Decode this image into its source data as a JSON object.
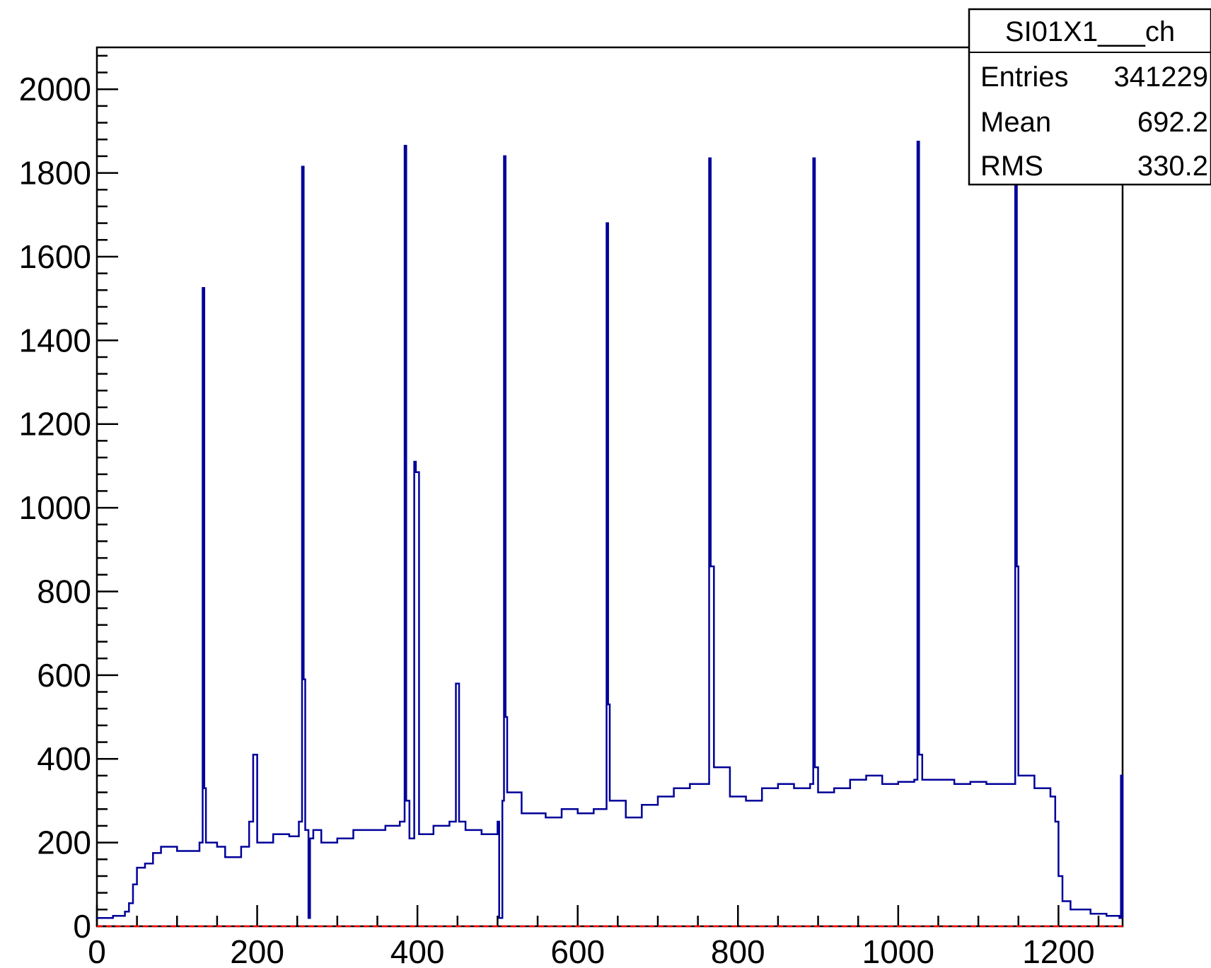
{
  "chart_data": {
    "type": "histogram",
    "title": "",
    "xlabel": "",
    "ylabel": "",
    "xlim": [
      0,
      1280
    ],
    "ylim": [
      0,
      2100
    ],
    "grid": false,
    "line_color": "#000099",
    "baseline_color": "#ff0000",
    "x_ticks": [
      0,
      200,
      400,
      600,
      800,
      1000,
      1200
    ],
    "y_ticks": [
      0,
      200,
      400,
      600,
      800,
      1000,
      1200,
      1400,
      1600,
      1800,
      2000
    ],
    "stats_box": {
      "name": "SI01X1___ch",
      "rows": [
        {
          "label": "Entries",
          "value": "341229"
        },
        {
          "label": "Mean",
          "value": "692.2"
        },
        {
          "label": "RMS",
          "value": "330.2"
        }
      ]
    },
    "baseline_points": [
      [
        0,
        20
      ],
      [
        20,
        25
      ],
      [
        35,
        35
      ],
      [
        40,
        55
      ],
      [
        45,
        100
      ],
      [
        50,
        140
      ],
      [
        60,
        150
      ],
      [
        70,
        175
      ],
      [
        80,
        190
      ],
      [
        100,
        180
      ],
      [
        120,
        180
      ],
      [
        128,
        200
      ],
      [
        132,
        1525
      ],
      [
        134,
        330
      ],
      [
        136,
        200
      ],
      [
        150,
        190
      ],
      [
        160,
        165
      ],
      [
        180,
        190
      ],
      [
        190,
        250
      ],
      [
        195,
        410
      ],
      [
        200,
        200
      ],
      [
        220,
        220
      ],
      [
        240,
        215
      ],
      [
        252,
        250
      ],
      [
        256,
        1815
      ],
      [
        258,
        590
      ],
      [
        260,
        230
      ],
      [
        264,
        20
      ],
      [
        266,
        210
      ],
      [
        270,
        230
      ],
      [
        280,
        200
      ],
      [
        300,
        210
      ],
      [
        320,
        230
      ],
      [
        340,
        230
      ],
      [
        360,
        240
      ],
      [
        378,
        250
      ],
      [
        384,
        1865
      ],
      [
        386,
        300
      ],
      [
        390,
        210
      ],
      [
        396,
        1110
      ],
      [
        398,
        1085
      ],
      [
        402,
        220
      ],
      [
        420,
        240
      ],
      [
        440,
        250
      ],
      [
        448,
        580
      ],
      [
        452,
        250
      ],
      [
        460,
        230
      ],
      [
        480,
        220
      ],
      [
        500,
        250
      ],
      [
        502,
        20
      ],
      [
        506,
        300
      ],
      [
        508,
        1840
      ],
      [
        510,
        500
      ],
      [
        512,
        320
      ],
      [
        530,
        270
      ],
      [
        560,
        260
      ],
      [
        580,
        280
      ],
      [
        600,
        270
      ],
      [
        620,
        280
      ],
      [
        636,
        1680
      ],
      [
        638,
        530
      ],
      [
        640,
        300
      ],
      [
        660,
        260
      ],
      [
        680,
        290
      ],
      [
        700,
        310
      ],
      [
        720,
        330
      ],
      [
        740,
        340
      ],
      [
        760,
        340
      ],
      [
        764,
        1835
      ],
      [
        766,
        860
      ],
      [
        770,
        380
      ],
      [
        790,
        310
      ],
      [
        810,
        300
      ],
      [
        830,
        330
      ],
      [
        850,
        340
      ],
      [
        870,
        330
      ],
      [
        890,
        340
      ],
      [
        894,
        1835
      ],
      [
        896,
        380
      ],
      [
        900,
        320
      ],
      [
        920,
        330
      ],
      [
        940,
        350
      ],
      [
        960,
        360
      ],
      [
        980,
        340
      ],
      [
        1000,
        345
      ],
      [
        1020,
        350
      ],
      [
        1024,
        1875
      ],
      [
        1026,
        410
      ],
      [
        1030,
        350
      ],
      [
        1050,
        350
      ],
      [
        1070,
        340
      ],
      [
        1090,
        345
      ],
      [
        1110,
        340
      ],
      [
        1146,
        1790
      ],
      [
        1148,
        860
      ],
      [
        1150,
        360
      ],
      [
        1170,
        330
      ],
      [
        1190,
        310
      ],
      [
        1196,
        250
      ],
      [
        1200,
        120
      ],
      [
        1205,
        60
      ],
      [
        1215,
        40
      ],
      [
        1240,
        30
      ],
      [
        1260,
        25
      ],
      [
        1276,
        20
      ],
      [
        1278,
        360
      ],
      [
        1280,
        20
      ]
    ]
  }
}
